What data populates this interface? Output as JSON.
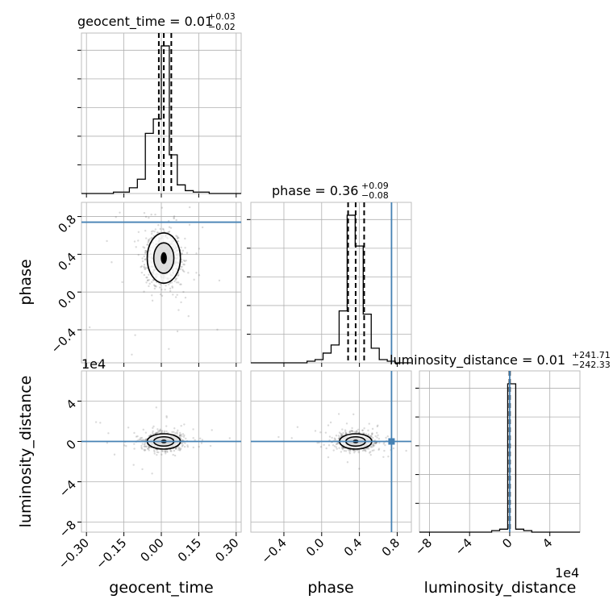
{
  "chart_data": {
    "type": "corner",
    "parameters": [
      "geocent_time",
      "phase",
      "luminosity_distance"
    ],
    "panel_titles": {
      "geocent_time": {
        "prefix": "geocent_time = 0.01",
        "plus": "+0.03",
        "minus": "−0.02"
      },
      "phase": {
        "prefix": "phase = 0.36",
        "plus": "+0.09",
        "minus": "−0.08"
      },
      "luminosity_distance": {
        "prefix": "luminosity_distance = 0.01",
        "plus": "+241.71",
        "minus": "−242.33"
      }
    },
    "axis_labels": {
      "geocent_time": "geocent_time",
      "phase": "phase",
      "luminosity_distance": "luminosity_distance"
    },
    "axis_ranges": {
      "geocent_time": [
        -0.32,
        0.32
      ],
      "phase": [
        -0.75,
        0.95
      ],
      "luminosity_distance": [
        -90000,
        70000
      ]
    },
    "ticks": {
      "geocent_time": {
        "values": [
          -0.3,
          -0.15,
          0.0,
          0.15,
          0.3
        ],
        "labels": [
          "−0.30",
          "−0.15",
          "0.00",
          "0.15",
          "0.30"
        ]
      },
      "phase": {
        "values": [
          -0.4,
          0.0,
          0.4,
          0.8
        ],
        "labels": [
          "−0.4",
          "0.0",
          "0.4",
          "0.8"
        ]
      },
      "luminosity_distance": {
        "values": [
          -80000,
          -40000,
          0,
          40000
        ],
        "labels": [
          "−8",
          "−4",
          "0",
          "4"
        ]
      }
    },
    "exponent_label": "1e4",
    "injected_values": {
      "phase": 0.74,
      "luminosity_distance": 0
    },
    "truth_color": "#4682b4",
    "hist_color": "#000000",
    "grid": true,
    "histograms": {
      "geocent_time": {
        "edges": [
          -0.32,
          -0.288,
          -0.256,
          -0.224,
          -0.192,
          -0.16,
          -0.128,
          -0.096,
          -0.064,
          -0.032,
          0.0,
          0.032,
          0.064,
          0.096,
          0.128,
          0.16,
          0.192,
          0.224,
          0.256,
          0.288,
          0.32
        ],
        "counts": [
          0,
          0,
          0,
          0,
          1,
          1,
          4,
          10,
          42,
          52,
          103,
          27,
          6,
          2,
          1,
          1,
          0,
          0,
          0,
          0
        ],
        "quantiles": [
          -0.01,
          0.01,
          0.04
        ]
      },
      "phase": {
        "edges": [
          -0.75,
          -0.665,
          -0.58,
          -0.495,
          -0.41,
          -0.325,
          -0.24,
          -0.155,
          -0.07,
          0.015,
          0.1,
          0.185,
          0.27,
          0.355,
          0.44,
          0.525,
          0.61,
          0.695,
          0.78,
          0.865,
          0.95
        ],
        "counts": [
          0,
          0,
          0,
          0,
          0,
          0,
          0,
          1,
          2,
          6,
          11,
          32,
          91,
          72,
          30,
          9,
          2,
          1,
          0,
          0
        ],
        "quantiles": [
          0.28,
          0.36,
          0.45
        ]
      },
      "luminosity_distance": {
        "edges": [
          -90000,
          -82000,
          -74000,
          -66000,
          -58000,
          -50000,
          -42000,
          -34000,
          -26000,
          -18000,
          -10000,
          -2000,
          6000,
          14000,
          22000,
          30000,
          38000,
          46000,
          54000,
          62000,
          70000
        ],
        "counts": [
          0,
          0,
          0,
          0,
          0,
          0,
          0,
          0,
          0,
          1,
          2,
          100,
          2,
          1,
          0,
          0,
          0,
          0,
          0,
          0
        ],
        "quantiles": [
          -242.32,
          0.01,
          241.72
        ]
      }
    },
    "scatter_2d": [
      {
        "x": "geocent_time",
        "y": "phase",
        "center": [
          0.01,
          0.36
        ],
        "spread": [
          0.035,
          0.14
        ]
      },
      {
        "x": "geocent_time",
        "y": "luminosity_distance",
        "center": [
          0.01,
          0
        ],
        "spread": [
          0.035,
          4000
        ]
      },
      {
        "x": "phase",
        "y": "luminosity_distance",
        "center": [
          0.36,
          0
        ],
        "spread": [
          0.09,
          4000
        ]
      }
    ]
  }
}
